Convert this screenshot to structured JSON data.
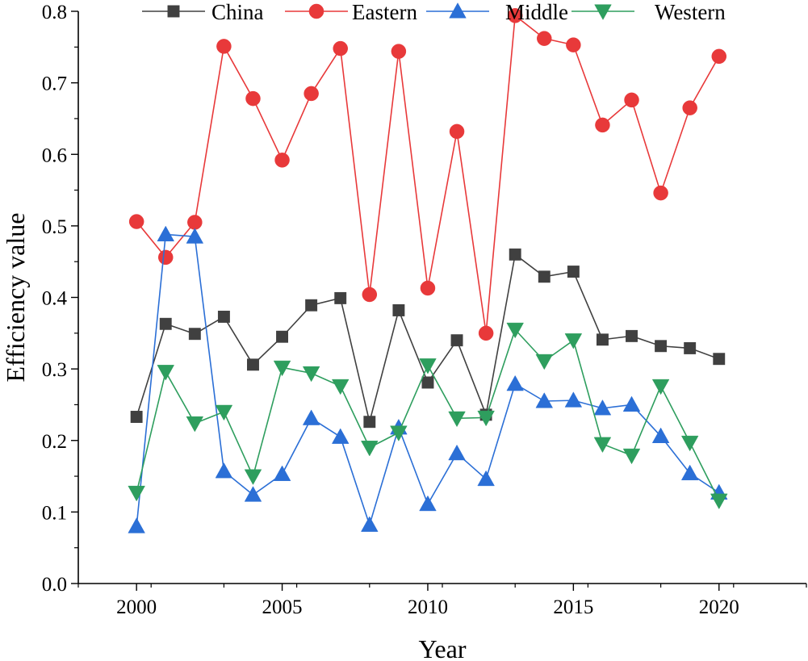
{
  "chart_data": {
    "type": "line",
    "title": "",
    "xlabel": "Year",
    "ylabel": "Efficiency value",
    "xlim": [
      1998,
      2023
    ],
    "ylim": [
      0.0,
      0.8
    ],
    "xticks": [
      "2000",
      "2005",
      "2010",
      "2015",
      "2020"
    ],
    "yticks": [
      "0.0",
      "0.1",
      "0.2",
      "0.3",
      "0.4",
      "0.5",
      "0.6",
      "0.7",
      "0.8"
    ],
    "grid": false,
    "legend_position": "top",
    "x": [
      2000,
      2001,
      2002,
      2003,
      2004,
      2005,
      2006,
      2007,
      2008,
      2009,
      2010,
      2011,
      2012,
      2013,
      2014,
      2015,
      2016,
      2017,
      2018,
      2019,
      2020
    ],
    "series": [
      {
        "name": "China",
        "color": "#404040",
        "marker": "square",
        "values": [
          0.233,
          0.363,
          0.349,
          0.373,
          0.306,
          0.345,
          0.389,
          0.399,
          0.226,
          0.382,
          0.281,
          0.34,
          0.236,
          0.46,
          0.429,
          0.436,
          0.341,
          0.346,
          0.332,
          0.329,
          0.314
        ]
      },
      {
        "name": "Eastern",
        "color": "#e8393a",
        "marker": "circle",
        "values": [
          0.506,
          0.456,
          0.505,
          0.751,
          0.678,
          0.592,
          0.685,
          0.748,
          0.404,
          0.744,
          0.413,
          0.632,
          0.35,
          0.794,
          0.762,
          0.753,
          0.641,
          0.676,
          0.546,
          0.665,
          0.737
        ]
      },
      {
        "name": "Middle",
        "color": "#2b6fd6",
        "marker": "triangle-up",
        "values": [
          0.08,
          0.488,
          0.485,
          0.157,
          0.124,
          0.153,
          0.231,
          0.205,
          0.082,
          0.218,
          0.111,
          0.182,
          0.146,
          0.279,
          0.255,
          0.256,
          0.245,
          0.25,
          0.206,
          0.154,
          0.127
        ]
      },
      {
        "name": "Western",
        "color": "#2e9e5e",
        "marker": "triangle-down",
        "values": [
          0.127,
          0.296,
          0.224,
          0.24,
          0.15,
          0.302,
          0.294,
          0.276,
          0.19,
          0.211,
          0.305,
          0.231,
          0.232,
          0.355,
          0.311,
          0.34,
          0.195,
          0.179,
          0.276,
          0.197,
          0.116
        ]
      }
    ]
  }
}
